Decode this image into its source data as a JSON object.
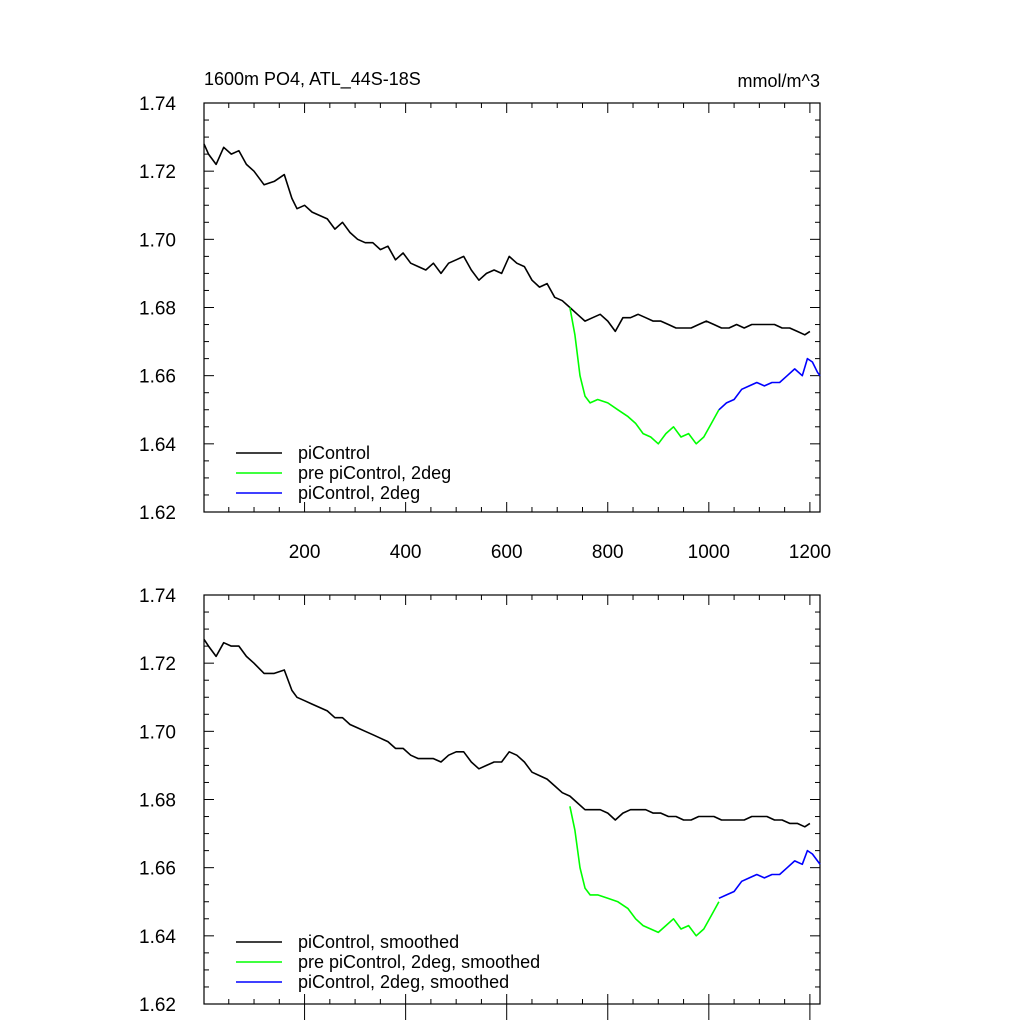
{
  "chart_data": [
    {
      "type": "line",
      "title": "1600m PO4, ATL_44S-18S",
      "units": "mmol/m^3",
      "xlim": [
        1,
        1220
      ],
      "ylim": [
        1.62,
        1.74
      ],
      "yticks": [
        "1.62",
        "1.64",
        "1.66",
        "1.68",
        "1.70",
        "1.72",
        "1.74"
      ],
      "xticks": [
        "200",
        "400",
        "600",
        "800",
        "1000",
        "1200"
      ],
      "legend_position": "bottom-left",
      "series": [
        {
          "name": "piControl",
          "color": "#000000",
          "x": [
            1,
            10,
            25,
            40,
            55,
            70,
            85,
            100,
            120,
            140,
            160,
            175,
            185,
            200,
            215,
            230,
            245,
            260,
            275,
            290,
            305,
            320,
            335,
            350,
            365,
            380,
            395,
            410,
            425,
            440,
            455,
            470,
            485,
            500,
            515,
            530,
            545,
            560,
            575,
            590,
            605,
            620,
            635,
            650,
            665,
            680,
            695,
            710,
            725,
            740,
            755,
            770,
            785,
            800,
            815,
            830,
            845,
            860,
            875,
            890,
            905,
            920,
            935,
            950,
            965,
            980,
            995,
            1010,
            1025,
            1040,
            1055,
            1070,
            1085,
            1100,
            1115,
            1130,
            1145,
            1160,
            1175,
            1190,
            1200
          ],
          "values": [
            1.728,
            1.725,
            1.722,
            1.727,
            1.725,
            1.726,
            1.722,
            1.72,
            1.716,
            1.717,
            1.719,
            1.712,
            1.709,
            1.71,
            1.708,
            1.707,
            1.706,
            1.703,
            1.705,
            1.702,
            1.7,
            1.699,
            1.699,
            1.697,
            1.698,
            1.694,
            1.696,
            1.693,
            1.692,
            1.691,
            1.693,
            1.69,
            1.693,
            1.694,
            1.695,
            1.691,
            1.688,
            1.69,
            1.691,
            1.69,
            1.695,
            1.693,
            1.692,
            1.688,
            1.686,
            1.687,
            1.683,
            1.682,
            1.68,
            1.678,
            1.676,
            1.677,
            1.678,
            1.676,
            1.673,
            1.677,
            1.677,
            1.678,
            1.677,
            1.676,
            1.676,
            1.675,
            1.674,
            1.674,
            1.674,
            1.675,
            1.676,
            1.675,
            1.674,
            1.674,
            1.675,
            1.674,
            1.675,
            1.675,
            1.675,
            1.675,
            1.674,
            1.674,
            1.673,
            1.672,
            1.673
          ]
        },
        {
          "name": "pre piControl, 2deg",
          "color": "#00ff00",
          "x": [
            725,
            735,
            745,
            755,
            765,
            780,
            800,
            820,
            840,
            855,
            870,
            885,
            900,
            915,
            930,
            945,
            960,
            975,
            990,
            1005,
            1020
          ],
          "values": [
            1.68,
            1.672,
            1.66,
            1.654,
            1.652,
            1.653,
            1.652,
            1.65,
            1.648,
            1.646,
            1.643,
            1.642,
            1.64,
            1.643,
            1.645,
            1.642,
            1.643,
            1.64,
            1.642,
            1.646,
            1.65
          ]
        },
        {
          "name": "piControl, 2deg",
          "color": "#0000ff",
          "x": [
            1020,
            1035,
            1050,
            1065,
            1080,
            1095,
            1110,
            1125,
            1140,
            1155,
            1170,
            1185,
            1195,
            1205,
            1215,
            1220
          ],
          "values": [
            1.65,
            1.652,
            1.653,
            1.656,
            1.657,
            1.658,
            1.657,
            1.658,
            1.658,
            1.66,
            1.662,
            1.66,
            1.665,
            1.664,
            1.661,
            1.66
          ]
        }
      ]
    },
    {
      "type": "line",
      "title": "",
      "xlim": [
        1,
        1220
      ],
      "ylim": [
        1.62,
        1.74
      ],
      "yticks": [
        "1.62",
        "1.64",
        "1.66",
        "1.68",
        "1.70",
        "1.72",
        "1.74"
      ],
      "legend_position": "bottom-left",
      "series": [
        {
          "name": "piControl, smoothed",
          "color": "#000000",
          "x": [
            1,
            10,
            25,
            40,
            55,
            70,
            85,
            100,
            120,
            140,
            160,
            175,
            185,
            200,
            215,
            230,
            245,
            260,
            275,
            290,
            305,
            320,
            335,
            350,
            365,
            380,
            395,
            410,
            425,
            440,
            455,
            470,
            485,
            500,
            515,
            530,
            545,
            560,
            575,
            590,
            605,
            620,
            635,
            650,
            665,
            680,
            695,
            710,
            725,
            740,
            755,
            770,
            785,
            800,
            815,
            830,
            845,
            860,
            875,
            890,
            905,
            920,
            935,
            950,
            965,
            980,
            995,
            1010,
            1025,
            1040,
            1055,
            1070,
            1085,
            1100,
            1115,
            1130,
            1145,
            1160,
            1175,
            1190,
            1200
          ],
          "values": [
            1.727,
            1.725,
            1.722,
            1.726,
            1.725,
            1.725,
            1.722,
            1.72,
            1.717,
            1.717,
            1.718,
            1.712,
            1.71,
            1.709,
            1.708,
            1.707,
            1.706,
            1.704,
            1.704,
            1.702,
            1.701,
            1.7,
            1.699,
            1.698,
            1.697,
            1.695,
            1.695,
            1.693,
            1.692,
            1.692,
            1.692,
            1.691,
            1.693,
            1.694,
            1.694,
            1.691,
            1.689,
            1.69,
            1.691,
            1.691,
            1.694,
            1.693,
            1.691,
            1.688,
            1.687,
            1.686,
            1.684,
            1.682,
            1.681,
            1.679,
            1.677,
            1.677,
            1.677,
            1.676,
            1.674,
            1.676,
            1.677,
            1.677,
            1.677,
            1.676,
            1.676,
            1.675,
            1.675,
            1.674,
            1.674,
            1.675,
            1.675,
            1.675,
            1.674,
            1.674,
            1.674,
            1.674,
            1.675,
            1.675,
            1.675,
            1.674,
            1.674,
            1.673,
            1.673,
            1.672,
            1.673
          ]
        },
        {
          "name": "pre piControl, 2deg, smoothed",
          "color": "#00ff00",
          "x": [
            725,
            735,
            745,
            755,
            765,
            780,
            800,
            820,
            840,
            855,
            870,
            885,
            900,
            915,
            930,
            945,
            960,
            975,
            990,
            1005,
            1020
          ],
          "values": [
            1.678,
            1.671,
            1.66,
            1.654,
            1.652,
            1.652,
            1.651,
            1.65,
            1.648,
            1.645,
            1.643,
            1.642,
            1.641,
            1.643,
            1.645,
            1.642,
            1.643,
            1.64,
            1.642,
            1.646,
            1.65
          ]
        },
        {
          "name": "piControl, 2deg, smoothed",
          "color": "#0000ff",
          "x": [
            1020,
            1035,
            1050,
            1065,
            1080,
            1095,
            1110,
            1125,
            1140,
            1155,
            1170,
            1185,
            1195,
            1205,
            1215,
            1220
          ],
          "values": [
            1.651,
            1.652,
            1.653,
            1.656,
            1.657,
            1.658,
            1.657,
            1.658,
            1.658,
            1.66,
            1.662,
            1.661,
            1.665,
            1.664,
            1.662,
            1.661
          ]
        }
      ]
    }
  ]
}
